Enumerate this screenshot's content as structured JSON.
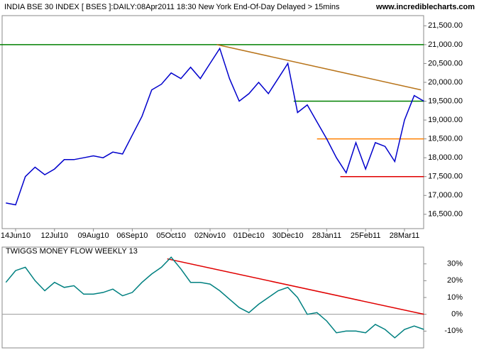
{
  "chart_data": [
    {
      "type": "line",
      "title": "INDIA BSE 30 INDEX [ BSES ]:DAILY:08Apr2011 18:30 New York End-Of-Day Delayed > 15mins",
      "source": "www.incrediblecharts.com",
      "categories": [
        null,
        "14Jun10",
        null,
        null,
        null,
        "12Jul10",
        null,
        null,
        null,
        "09Aug10",
        null,
        null,
        null,
        "06Sep10",
        null,
        null,
        null,
        "05Oct10",
        null,
        null,
        null,
        "02Nov10",
        null,
        null,
        null,
        "01Dec10",
        null,
        null,
        null,
        "30Dec10",
        null,
        null,
        null,
        "28Jan11",
        null,
        null,
        null,
        "25Feb11",
        null,
        null,
        null,
        "28Mar11",
        null,
        null
      ],
      "series": [
        {
          "color": "#0000cc",
          "values": [
            16800,
            16750,
            17500,
            17750,
            17550,
            17700,
            17950,
            17950,
            18000,
            18050,
            18000,
            18150,
            18100,
            18600,
            19100,
            19800,
            19950,
            20250,
            20100,
            20400,
            20100,
            20500,
            20900,
            20100,
            19500,
            19700,
            20000,
            19700,
            20100,
            20500,
            19200,
            19400,
            18950,
            18500,
            18000,
            17600,
            18400,
            17700,
            18400,
            18300,
            17900,
            19000,
            19650,
            19500
          ]
        }
      ],
      "trendlines": [
        {
          "color": "#008000",
          "from": 0,
          "to": 43,
          "values": [
            21000,
            21000
          ]
        },
        {
          "color": "#b8741a",
          "from": 21.7,
          "to": 42.7,
          "values": [
            21000,
            19800
          ]
        },
        {
          "color": "#008000",
          "from": 29.6,
          "to": 43,
          "values": [
            19500,
            19500
          ]
        },
        {
          "color": "#ff8000",
          "from": 32,
          "to": 43,
          "values": [
            18500,
            18500
          ]
        },
        {
          "color": "#e00000",
          "from": 34.4,
          "to": 43,
          "values": [
            17500,
            17500
          ]
        }
      ],
      "ylim": [
        16120,
        21770
      ],
      "yticks": [
        {
          "value": 16500,
          "label": "16,500.00"
        },
        {
          "value": 17000,
          "label": "17,000.00"
        },
        {
          "value": 17500,
          "label": "17,500.00"
        },
        {
          "value": 18000,
          "label": "18,000.00"
        },
        {
          "value": 18500,
          "label": "18,500.00"
        },
        {
          "value": 19000,
          "label": "19,000.00"
        },
        {
          "value": 19500,
          "label": "19,500.00"
        },
        {
          "value": 20000,
          "label": "20,000.00"
        },
        {
          "value": 20500,
          "label": "20,500.00"
        },
        {
          "value": 21000,
          "label": "21,000.00"
        },
        {
          "value": 21500,
          "label": "21,500.00"
        }
      ]
    },
    {
      "type": "line",
      "title": "TWIGGS MONEY FLOW WEEKLY 13",
      "series": [
        {
          "color": "#008080",
          "values": [
            19,
            26,
            28,
            20,
            14,
            19,
            16,
            17,
            12,
            12,
            13,
            15,
            11,
            13,
            19,
            24,
            28,
            34,
            27,
            19,
            19,
            18,
            14,
            9,
            4,
            1,
            6,
            10,
            14,
            16,
            10,
            0,
            1,
            -4,
            -11,
            -10,
            -10,
            -11,
            -6,
            -9,
            -14,
            -9,
            -7,
            -9
          ]
        }
      ],
      "trendlines": [
        {
          "color": "#e00000",
          "from": 16.6,
          "to": 43,
          "values": [
            33,
            0
          ]
        }
      ],
      "zero_line": {
        "value": 0,
        "color": "#999999"
      },
      "ylim": [
        -20,
        40
      ],
      "yticks": [
        {
          "value": -10,
          "label": "-10%"
        },
        {
          "value": 0,
          "label": "0%"
        },
        {
          "value": 10,
          "label": "10%"
        },
        {
          "value": 20,
          "label": "20%"
        },
        {
          "value": 30,
          "label": "30%"
        }
      ]
    }
  ]
}
